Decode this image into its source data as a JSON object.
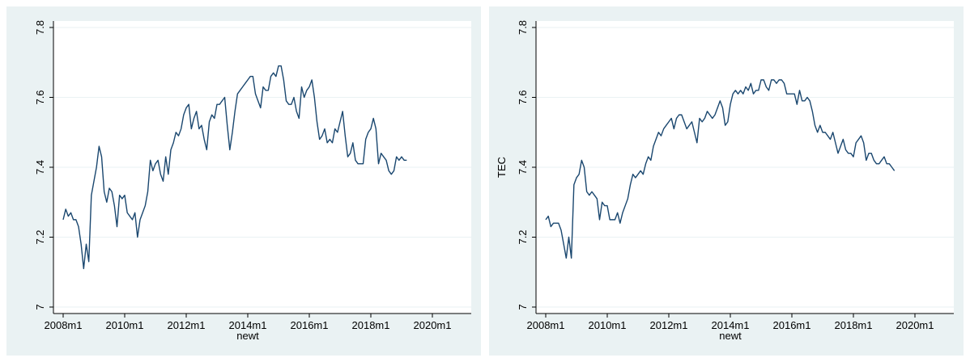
{
  "chart_data": [
    {
      "type": "line",
      "xlabel": "newt",
      "ylabel": "",
      "xlim": [
        "2008m1",
        "2020m1"
      ],
      "ylim": [
        7,
        7.8
      ],
      "x_ticks": [
        "2008m1",
        "2010m1",
        "2012m1",
        "2014m1",
        "2016m1",
        "2018m1",
        "2020m1"
      ],
      "y_ticks": [
        "7",
        "7.2",
        "7.4",
        "7.6",
        "7.8"
      ],
      "grid": true,
      "line_color": "#1a476f",
      "start": "2008m1",
      "frequency": "monthly",
      "values": [
        7.25,
        7.28,
        7.26,
        7.27,
        7.25,
        7.25,
        7.23,
        7.18,
        7.11,
        7.18,
        7.13,
        7.32,
        7.36,
        7.4,
        7.46,
        7.43,
        7.33,
        7.3,
        7.34,
        7.33,
        7.29,
        7.23,
        7.32,
        7.31,
        7.32,
        7.27,
        7.26,
        7.25,
        7.27,
        7.2,
        7.25,
        7.27,
        7.29,
        7.33,
        7.42,
        7.39,
        7.41,
        7.42,
        7.38,
        7.36,
        7.43,
        7.38,
        7.45,
        7.47,
        7.5,
        7.49,
        7.51,
        7.55,
        7.57,
        7.58,
        7.51,
        7.54,
        7.56,
        7.51,
        7.52,
        7.48,
        7.45,
        7.53,
        7.55,
        7.54,
        7.58,
        7.58,
        7.59,
        7.6,
        7.52,
        7.45,
        7.5,
        7.56,
        7.61,
        7.62,
        7.63,
        7.64,
        7.65,
        7.66,
        7.66,
        7.61,
        7.59,
        7.57,
        7.63,
        7.62,
        7.62,
        7.66,
        7.67,
        7.66,
        7.69,
        7.69,
        7.65,
        7.59,
        7.58,
        7.58,
        7.6,
        7.56,
        7.54,
        7.63,
        7.6,
        7.62,
        7.63,
        7.65,
        7.6,
        7.53,
        7.48,
        7.49,
        7.51,
        7.47,
        7.48,
        7.47,
        7.51,
        7.5,
        7.53,
        7.56,
        7.49,
        7.43,
        7.44,
        7.47,
        7.42,
        7.41,
        7.41,
        7.41,
        7.48,
        7.5,
        7.51,
        7.54,
        7.51,
        7.41,
        7.44,
        7.43,
        7.42,
        7.39,
        7.38,
        7.39,
        7.43,
        7.42,
        7.43,
        7.42,
        7.42
      ]
    },
    {
      "type": "line",
      "xlabel": "newt",
      "ylabel": "TEC",
      "xlim": [
        "2008m1",
        "2020m1"
      ],
      "ylim": [
        7,
        7.8
      ],
      "x_ticks": [
        "2008m1",
        "2010m1",
        "2012m1",
        "2014m1",
        "2016m1",
        "2018m1",
        "2020m1"
      ],
      "y_ticks": [
        "7",
        "7.2",
        "7.4",
        "7.6",
        "7.8"
      ],
      "grid": true,
      "line_color": "#1a476f",
      "start": "2008m1",
      "frequency": "monthly",
      "values": [
        7.25,
        7.26,
        7.23,
        7.24,
        7.24,
        7.24,
        7.22,
        7.18,
        7.14,
        7.2,
        7.14,
        7.35,
        7.37,
        7.38,
        7.42,
        7.4,
        7.33,
        7.32,
        7.33,
        7.32,
        7.31,
        7.25,
        7.3,
        7.29,
        7.29,
        7.25,
        7.25,
        7.25,
        7.27,
        7.24,
        7.27,
        7.29,
        7.31,
        7.35,
        7.38,
        7.37,
        7.38,
        7.39,
        7.38,
        7.41,
        7.43,
        7.42,
        7.46,
        7.48,
        7.5,
        7.49,
        7.51,
        7.52,
        7.53,
        7.54,
        7.51,
        7.54,
        7.55,
        7.55,
        7.53,
        7.51,
        7.52,
        7.53,
        7.5,
        7.47,
        7.54,
        7.53,
        7.54,
        7.56,
        7.55,
        7.54,
        7.55,
        7.57,
        7.59,
        7.57,
        7.52,
        7.53,
        7.58,
        7.61,
        7.62,
        7.61,
        7.62,
        7.61,
        7.63,
        7.62,
        7.64,
        7.61,
        7.62,
        7.62,
        7.65,
        7.65,
        7.63,
        7.62,
        7.65,
        7.65,
        7.64,
        7.65,
        7.65,
        7.64,
        7.61,
        7.61,
        7.61,
        7.61,
        7.58,
        7.62,
        7.59,
        7.59,
        7.6,
        7.59,
        7.56,
        7.52,
        7.5,
        7.52,
        7.5,
        7.5,
        7.49,
        7.48,
        7.5,
        7.47,
        7.44,
        7.46,
        7.48,
        7.45,
        7.44,
        7.44,
        7.43,
        7.47,
        7.48,
        7.49,
        7.47,
        7.42,
        7.44,
        7.44,
        7.42,
        7.41,
        7.41,
        7.42,
        7.43,
        7.41,
        7.41,
        7.4,
        7.39
      ]
    }
  ]
}
